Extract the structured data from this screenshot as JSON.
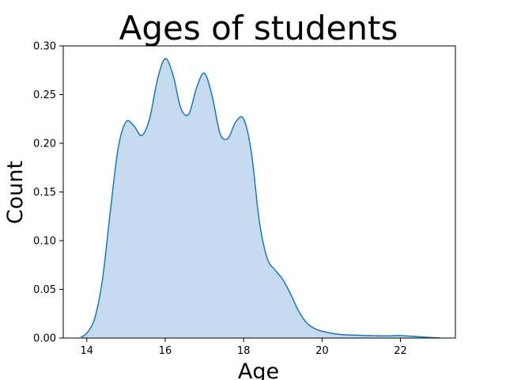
{
  "chart_data": {
    "type": "area",
    "title": "Ages of students",
    "xlabel": "Age",
    "ylabel": "Count",
    "xlim": [
      13.4,
      23.4
    ],
    "ylim": [
      0,
      0.3
    ],
    "grid": false,
    "x_ticks": [
      14,
      16,
      18,
      20,
      22
    ],
    "y_ticks": [
      0.0,
      0.05,
      0.1,
      0.15,
      0.2,
      0.25,
      0.3
    ],
    "x_tick_labels": [
      "14",
      "16",
      "18",
      "20",
      "22"
    ],
    "y_tick_labels": [
      "0.00",
      "0.05",
      "0.10",
      "0.15",
      "0.20",
      "0.25",
      "0.30"
    ],
    "series": [
      {
        "color": "#1f77b4",
        "fill_color": "#c6dbef",
        "x": [
          13.85,
          14.0,
          14.2,
          14.4,
          14.6,
          14.8,
          15.0,
          15.2,
          15.4,
          15.6,
          15.8,
          16.0,
          16.2,
          16.4,
          16.6,
          16.8,
          17.0,
          17.2,
          17.4,
          17.6,
          17.8,
          18.0,
          18.2,
          18.4,
          18.6,
          18.8,
          19.0,
          19.2,
          19.4,
          19.6,
          19.8,
          20.0,
          20.4,
          20.8,
          21.2,
          21.6,
          22.0,
          22.4,
          22.8,
          23.0
        ],
        "y": [
          0.001,
          0.005,
          0.02,
          0.06,
          0.13,
          0.195,
          0.222,
          0.218,
          0.208,
          0.225,
          0.265,
          0.287,
          0.27,
          0.236,
          0.23,
          0.257,
          0.272,
          0.248,
          0.21,
          0.205,
          0.222,
          0.225,
          0.19,
          0.12,
          0.082,
          0.07,
          0.06,
          0.045,
          0.028,
          0.016,
          0.01,
          0.007,
          0.004,
          0.003,
          0.0025,
          0.0022,
          0.0025,
          0.0015,
          0.0005,
          0.0001
        ]
      }
    ]
  }
}
